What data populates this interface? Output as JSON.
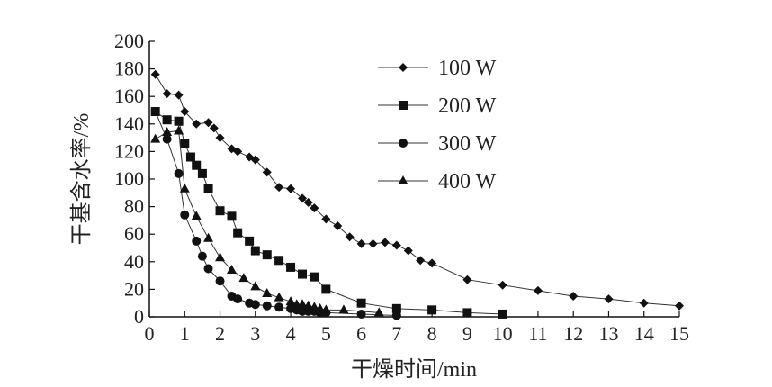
{
  "chart_data": {
    "type": "line",
    "title": "",
    "xlabel": "干燥时间/min",
    "ylabel": "干基含水率/%",
    "xlim": [
      0,
      15
    ],
    "ylim": [
      0,
      200
    ],
    "xticks": [
      0,
      1,
      2,
      3,
      4,
      5,
      6,
      7,
      8,
      9,
      10,
      11,
      12,
      13,
      14,
      15
    ],
    "yticks": [
      0,
      20,
      40,
      60,
      80,
      100,
      120,
      140,
      160,
      180,
      200
    ],
    "grid": false,
    "legend_position": "top-right",
    "series": [
      {
        "name": "100 W",
        "marker": "diamond",
        "x": [
          0.17,
          0.5,
          0.83,
          1.0,
          1.33,
          1.67,
          1.83,
          2.0,
          2.33,
          2.5,
          2.83,
          3.0,
          3.33,
          3.67,
          4.0,
          4.33,
          4.5,
          4.67,
          5.0,
          5.33,
          5.67,
          6.0,
          6.33,
          6.67,
          7.0,
          7.33,
          7.67,
          8.0,
          9.0,
          10.0,
          11.0,
          12.0,
          13.0,
          14.0,
          15.0
        ],
        "y": [
          176,
          162,
          161,
          149,
          140,
          141,
          137,
          130,
          122,
          120,
          116,
          114,
          105,
          94,
          93,
          86,
          83,
          79,
          71,
          66,
          58,
          53,
          53,
          54,
          52,
          48,
          41,
          39,
          27,
          23,
          19,
          15,
          13,
          10,
          8
        ]
      },
      {
        "name": "200 W",
        "marker": "square",
        "x": [
          0.17,
          0.5,
          0.83,
          1.0,
          1.17,
          1.33,
          1.5,
          1.67,
          2.0,
          2.33,
          2.5,
          2.83,
          3.0,
          3.33,
          3.67,
          4.0,
          4.33,
          4.67,
          5.0,
          6.0,
          7.0,
          8.0,
          9.0,
          10.0
        ],
        "y": [
          149,
          143,
          142,
          126,
          116,
          110,
          104,
          93,
          77,
          73,
          61,
          55,
          48,
          45,
          41,
          36,
          31,
          29,
          20,
          10,
          6,
          5,
          3,
          2
        ]
      },
      {
        "name": "300 W",
        "marker": "circle",
        "x": [
          0.17,
          0.5,
          0.83,
          1.0,
          1.33,
          1.5,
          1.67,
          2.0,
          2.33,
          2.5,
          2.83,
          3.0,
          3.33,
          3.67,
          4.0,
          4.17,
          4.33,
          4.5,
          4.67,
          4.83,
          5.0,
          6.0,
          7.0
        ],
        "y": [
          149,
          129,
          104,
          74,
          55,
          44,
          35,
          26,
          15,
          13,
          10,
          9,
          8,
          7,
          6,
          5,
          4,
          4,
          4,
          3,
          3,
          2,
          1
        ]
      },
      {
        "name": "400 W",
        "marker": "triangle",
        "x": [
          0.17,
          0.5,
          0.83,
          1.0,
          1.33,
          1.67,
          2.0,
          2.33,
          2.67,
          3.0,
          3.33,
          3.67,
          4.0,
          4.17,
          4.33,
          4.5,
          4.67,
          4.83,
          5.0,
          5.5,
          6.5
        ],
        "y": [
          129,
          134,
          135,
          93,
          73,
          57,
          43,
          34,
          28,
          22,
          17,
          14,
          11,
          9,
          9,
          8,
          7,
          6,
          5,
          5,
          3
        ]
      }
    ]
  }
}
